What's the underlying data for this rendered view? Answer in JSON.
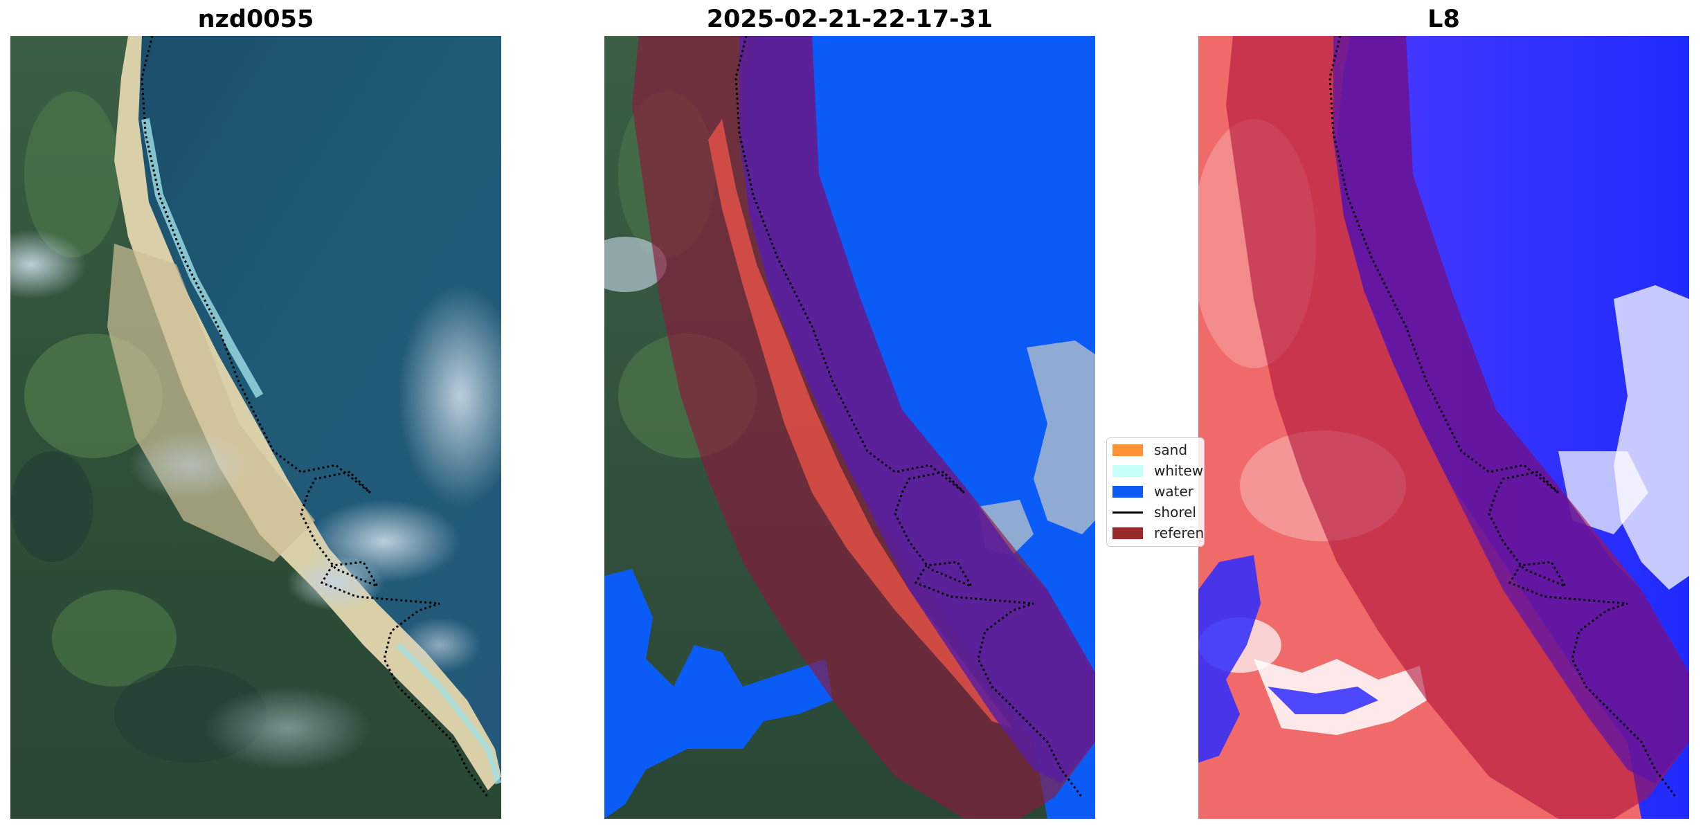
{
  "panels": [
    {
      "title": "nzd0055"
    },
    {
      "title": "2025-02-21-22-17-31"
    },
    {
      "title": "L8"
    }
  ],
  "legend": {
    "items": [
      {
        "label": "sand",
        "color": "#ff9233",
        "kind": "patch"
      },
      {
        "label": "whitew",
        "color": "#c6fff8",
        "kind": "patch"
      },
      {
        "label": "water",
        "color": "#0b5cf7",
        "kind": "patch"
      },
      {
        "label": "shorel",
        "color": "#000000",
        "kind": "line"
      },
      {
        "label": "referen",
        "color": "#992a2a",
        "kind": "patch"
      }
    ]
  },
  "colors": {
    "water_class": "#0b5cf7",
    "reference_band": "#8b1a3a",
    "ocean_rgb": "#1f5a78",
    "land_rgb": "#2d4e3a",
    "sand_rgb": "#d9cfa8",
    "index_positive": "#e8404a",
    "index_negative": "#2a2aff"
  }
}
